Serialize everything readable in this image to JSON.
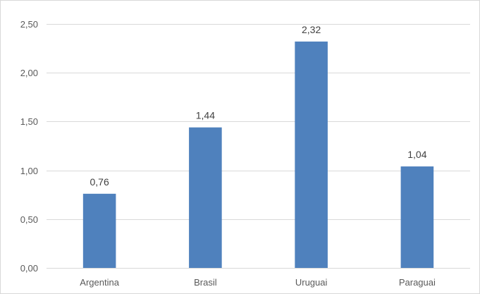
{
  "chart_data": {
    "type": "bar",
    "categories": [
      "Argentina",
      "Brasil",
      "Uruguai",
      "Paraguai"
    ],
    "values": [
      0.76,
      1.44,
      2.32,
      1.04
    ],
    "data_labels": [
      "0,76",
      "1,44",
      "2,32",
      "1,04"
    ],
    "y_ticks": [
      0,
      0.5,
      1,
      1.5,
      2,
      2.5
    ],
    "y_tick_labels": [
      "0,00",
      "0,50",
      "1,00",
      "1,50",
      "2,00",
      "2,50"
    ],
    "ylim": [
      0,
      2.5
    ],
    "title": "",
    "xlabel": "",
    "ylabel": "",
    "grid": true,
    "legend": "none",
    "bar_color": "#4f81bd",
    "grid_color": "#d9d9d9"
  }
}
